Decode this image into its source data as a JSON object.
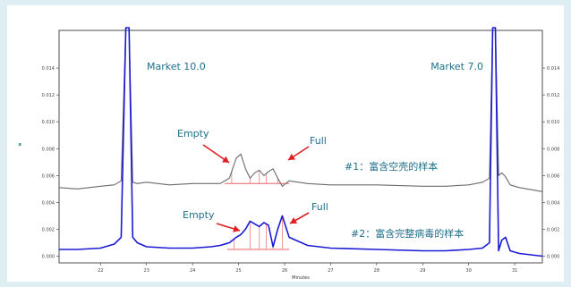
{
  "chart_data": {
    "type": "line",
    "xlabel": "Minutes",
    "ylabel": "",
    "xlim": [
      21.1,
      31.6
    ],
    "ylim": [
      -0.0005,
      0.0168
    ],
    "xticks": [
      22,
      23,
      24,
      25,
      26,
      27,
      28,
      29,
      30,
      31
    ],
    "yticks": [
      0.0,
      0.002,
      0.004,
      0.006,
      0.008,
      0.01,
      0.012,
      0.014
    ],
    "ytick_labels": [
      "0.000",
      "0.002",
      "0.004",
      "0.006",
      "0.008",
      "0.010",
      "0.012",
      "0.014"
    ],
    "grid": false,
    "colors": {
      "series1": "#6b6b6b",
      "series2": "#1a1ad6",
      "arrow": "#e02020",
      "peak_fill": "#f08c8c",
      "annotation": "#1f6f8b"
    },
    "series": [
      {
        "name": "#1：富含空壳的样本",
        "x": [
          21.1,
          21.5,
          22.0,
          22.3,
          22.45,
          22.55,
          22.62,
          22.7,
          22.8,
          23.0,
          23.5,
          24.0,
          24.4,
          24.6,
          24.8,
          24.95,
          25.05,
          25.15,
          25.25,
          25.35,
          25.45,
          25.55,
          25.65,
          25.75,
          25.85,
          25.95,
          26.1,
          26.5,
          27.0,
          28.0,
          29.0,
          29.5,
          30.0,
          30.3,
          30.45,
          30.52,
          30.58,
          30.65,
          30.72,
          30.8,
          30.9,
          31.1,
          31.6
        ],
        "values": [
          0.0051,
          0.005,
          0.0052,
          0.0053,
          0.0056,
          0.017,
          0.017,
          0.0055,
          0.0054,
          0.0055,
          0.0053,
          0.0054,
          0.0054,
          0.0054,
          0.0058,
          0.0073,
          0.0076,
          0.0065,
          0.0058,
          0.0062,
          0.0064,
          0.006,
          0.0063,
          0.0065,
          0.0058,
          0.0052,
          0.0056,
          0.0054,
          0.0053,
          0.0053,
          0.0052,
          0.0052,
          0.0053,
          0.0055,
          0.0058,
          0.017,
          0.017,
          0.006,
          0.0062,
          0.0059,
          0.0053,
          0.0051,
          0.0048
        ]
      },
      {
        "name": "#2：富含完整病毒的样本",
        "x": [
          21.1,
          21.5,
          22.0,
          22.3,
          22.45,
          22.55,
          22.62,
          22.7,
          22.8,
          23.0,
          23.5,
          24.0,
          24.4,
          24.6,
          24.8,
          24.95,
          25.05,
          25.15,
          25.25,
          25.35,
          25.45,
          25.55,
          25.65,
          25.75,
          25.85,
          25.95,
          26.1,
          26.5,
          27.0,
          28.0,
          29.0,
          29.5,
          30.0,
          30.3,
          30.45,
          30.52,
          30.58,
          30.65,
          30.72,
          30.8,
          30.9,
          31.1,
          31.6
        ],
        "values": [
          0.0005,
          0.0005,
          0.0006,
          0.0009,
          0.0014,
          0.017,
          0.017,
          0.0014,
          0.001,
          0.0007,
          0.0006,
          0.0006,
          0.0007,
          0.0008,
          0.001,
          0.0014,
          0.0016,
          0.002,
          0.0026,
          0.0024,
          0.0022,
          0.0025,
          0.0023,
          0.0007,
          0.002,
          0.003,
          0.0014,
          0.0008,
          0.0006,
          0.0005,
          0.0004,
          0.0004,
          0.0005,
          0.0006,
          0.001,
          0.017,
          0.017,
          0.0004,
          0.0012,
          0.0014,
          0.0004,
          0.0002,
          0.0
        ]
      }
    ],
    "annotations": {
      "market_left": "Market 10.0",
      "market_right": "Market 7.0",
      "empty_top": "Empty",
      "full_top": "Full",
      "empty_bottom": "Empty",
      "full_bottom": "Full"
    }
  }
}
